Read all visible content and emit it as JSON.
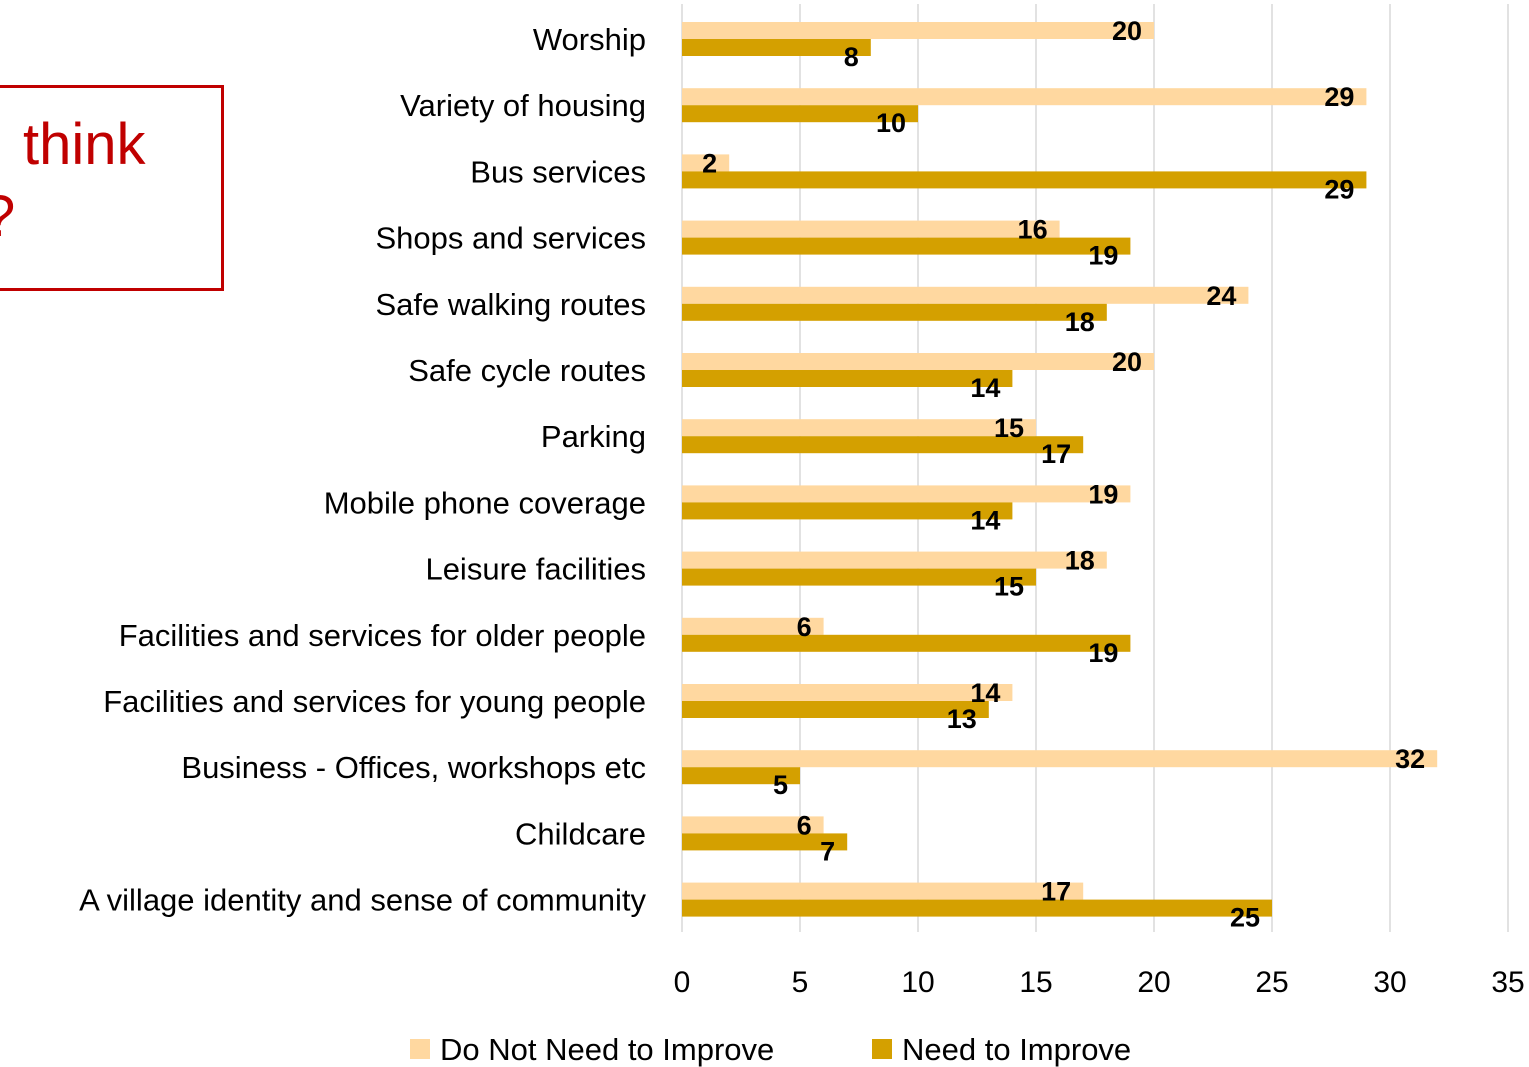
{
  "callout": {
    "line1": "think",
    "line2": "?"
  },
  "chart_data": {
    "type": "bar",
    "orientation": "horizontal",
    "categories": [
      "Worship",
      "Variety of housing",
      "Bus services",
      "Shops and services",
      "Safe walking routes",
      "Safe cycle routes",
      "Parking",
      "Mobile phone coverage",
      "Leisure facilities",
      "Facilities and services for older people",
      "Facilities and services for young people",
      "Business - Offices, workshops etc",
      "Childcare",
      "A village identity and sense of community"
    ],
    "series": [
      {
        "name": "Do Not Need to Improve",
        "color": "#ffd8a0",
        "values": [
          20,
          29,
          2,
          16,
          24,
          20,
          15,
          19,
          18,
          6,
          14,
          32,
          6,
          17
        ]
      },
      {
        "name": "Need to Improve",
        "color": "#d4a000",
        "values": [
          8,
          10,
          29,
          19,
          18,
          14,
          17,
          14,
          15,
          19,
          13,
          5,
          7,
          25
        ]
      }
    ],
    "xlim": [
      0,
      35
    ],
    "xticks": [
      0,
      5,
      10,
      15,
      20,
      25,
      30,
      35
    ],
    "grid": true,
    "legend": "bottom",
    "data_labels": true
  }
}
